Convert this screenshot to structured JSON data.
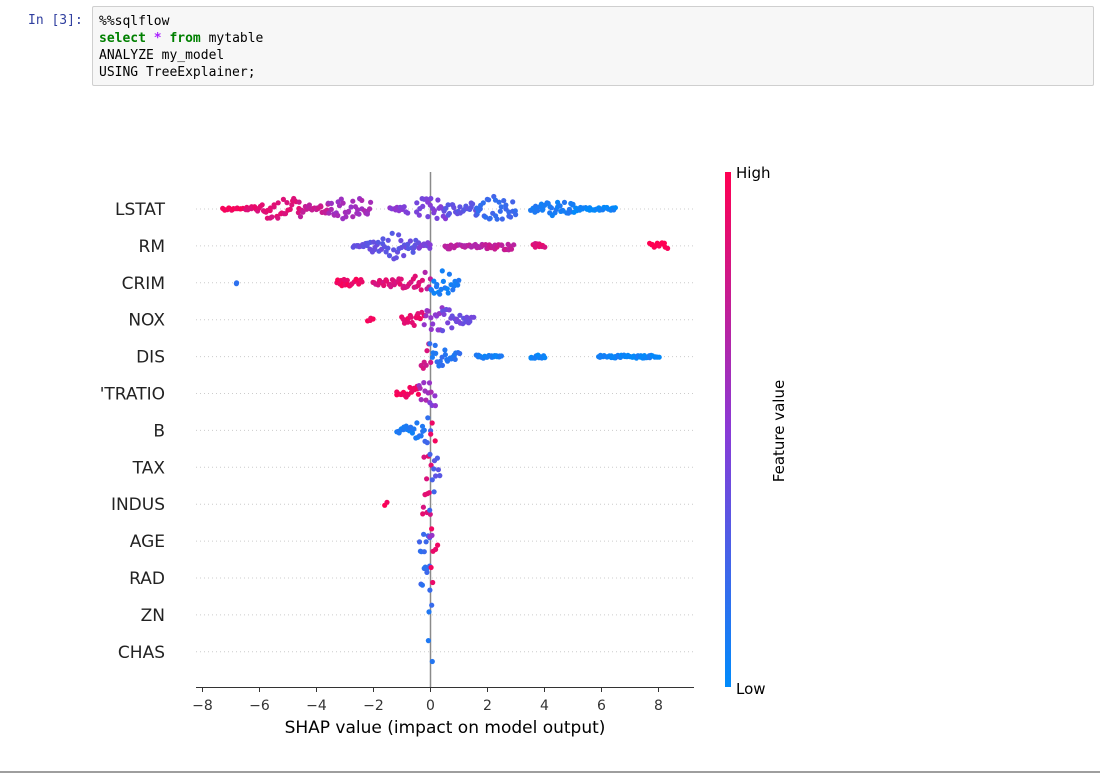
{
  "cell": {
    "prompt": "In [3]:",
    "code_lines": [
      {
        "parts": [
          {
            "t": "%%sqlflow",
            "c": "plain"
          }
        ]
      },
      {
        "parts": [
          {
            "t": "select",
            "c": "kw"
          },
          {
            "t": " ",
            "c": "plain"
          },
          {
            "t": "*",
            "c": "op"
          },
          {
            "t": " ",
            "c": "plain"
          },
          {
            "t": "from",
            "c": "kw"
          },
          {
            "t": " mytable",
            "c": "plain"
          }
        ]
      },
      {
        "parts": [
          {
            "t": "ANALYZE my_model",
            "c": "plain"
          }
        ]
      },
      {
        "parts": [
          {
            "t": "USING TreeExplainer;",
            "c": "plain"
          }
        ]
      }
    ]
  },
  "chart_data": {
    "type": "scatter",
    "subtype": "shap-beeswarm",
    "xlabel": "SHAP value (impact on model output)",
    "xlim": [
      -8.2,
      9.2
    ],
    "xticks": [
      -8,
      -6,
      -4,
      -2,
      0,
      2,
      4,
      6,
      8
    ],
    "features": [
      "LSTAT",
      "RM",
      "CRIM",
      "NOX",
      "DIS",
      "'TRATIO",
      "B",
      "TAX",
      "INDUS",
      "AGE",
      "RAD",
      "ZN",
      "CHAS"
    ],
    "colorbar": {
      "title": "Feature value",
      "high_label": "High",
      "low_label": "Low",
      "low_color": "#008bfb",
      "high_color": "#ff0052"
    },
    "zero_line": true,
    "grid": "dotted-rows",
    "distributions": [
      {
        "feature": "LSTAT",
        "segments": [
          [
            -7.3,
            -6.6,
            0.95
          ],
          [
            -6.5,
            -5.6,
            0.88
          ],
          [
            -5.6,
            -4.6,
            0.85
          ],
          [
            -4.6,
            -3.6,
            0.75
          ],
          [
            -3.6,
            -2.1,
            0.6
          ],
          [
            -1.4,
            -0.8,
            0.5
          ],
          [
            -0.5,
            0.5,
            0.45
          ],
          [
            0.5,
            1.6,
            0.35
          ],
          [
            1.6,
            3.0,
            0.2
          ],
          [
            3.5,
            5.0,
            0.08
          ],
          [
            5.0,
            6.5,
            0.05
          ]
        ],
        "density": [
          [
            -5.2,
            1.0
          ],
          [
            -2.8,
            1.0
          ],
          [
            0.1,
            1.0
          ],
          [
            2.2,
            1.0
          ],
          [
            4.4,
            0.6
          ]
        ]
      },
      {
        "feature": "RM",
        "segments": [
          [
            -2.7,
            -0.4,
            0.35
          ],
          [
            -0.4,
            0.0,
            0.45
          ],
          [
            0.5,
            2.0,
            0.7
          ],
          [
            2.0,
            2.9,
            0.75
          ],
          [
            3.6,
            4.0,
            0.85
          ],
          [
            7.7,
            8.3,
            1.0
          ]
        ],
        "density": [
          [
            -1.3,
            1.0
          ],
          [
            0.3,
            0.3
          ],
          [
            2.5,
            0.35
          ],
          [
            3.8,
            0.2
          ],
          [
            8.0,
            0.25
          ]
        ]
      },
      {
        "feature": "CRIM",
        "segments": [
          [
            -6.8,
            -6.8,
            0.15
          ],
          [
            -3.3,
            -2.4,
            0.95
          ],
          [
            -2.0,
            -0.3,
            0.85
          ],
          [
            -0.2,
            0.0,
            0.7
          ],
          [
            0.0,
            1.0,
            0.08
          ]
        ],
        "density": [
          [
            -2.8,
            0.3
          ],
          [
            -1.0,
            0.4
          ],
          [
            0.2,
            1.0
          ]
        ]
      },
      {
        "feature": "NOX",
        "segments": [
          [
            -2.2,
            -2.0,
            0.95
          ],
          [
            -1.0,
            -0.2,
            0.9
          ],
          [
            -0.2,
            0.4,
            0.55
          ],
          [
            0.4,
            1.5,
            0.4
          ]
        ],
        "density": [
          [
            -0.5,
            0.4
          ],
          [
            0.2,
            1.0
          ],
          [
            1.1,
            0.3
          ]
        ]
      },
      {
        "feature": "DIS",
        "segments": [
          [
            -0.3,
            0.0,
            0.8
          ],
          [
            0.0,
            1.0,
            0.15
          ],
          [
            1.6,
            2.5,
            0.08
          ],
          [
            3.5,
            4.0,
            0.05
          ],
          [
            5.9,
            8.0,
            0.05
          ]
        ],
        "density": [
          [
            -0.1,
            1.0
          ],
          [
            0.6,
            0.4
          ]
        ]
      },
      {
        "feature": "'TRATIO",
        "segments": [
          [
            -1.2,
            -0.4,
            0.95
          ],
          [
            -0.4,
            0.0,
            0.6
          ],
          [
            0.0,
            0.2,
            0.5
          ]
        ],
        "density": [
          [
            -0.2,
            0.5
          ],
          [
            0.05,
            1.0
          ]
        ]
      },
      {
        "feature": "B",
        "segments": [
          [
            -1.2,
            -0.2,
            0.1
          ],
          [
            -0.2,
            0.0,
            0.2
          ],
          [
            0.0,
            0.15,
            0.95
          ]
        ],
        "density": [
          [
            -0.7,
            0.2
          ],
          [
            0.05,
            1.0
          ]
        ]
      },
      {
        "feature": "TAX",
        "segments": [
          [
            -0.2,
            0.0,
            0.85
          ],
          [
            0.0,
            0.35,
            0.3
          ]
        ],
        "density": [
          [
            0.0,
            1.0
          ]
        ]
      },
      {
        "feature": "INDUS",
        "segments": [
          [
            -1.6,
            -1.5,
            0.95
          ],
          [
            -0.3,
            0.0,
            0.85
          ],
          [
            0.0,
            0.1,
            0.2
          ]
        ],
        "density": [
          [
            -1.55,
            0.25
          ],
          [
            0.0,
            1.0
          ]
        ]
      },
      {
        "feature": "AGE",
        "segments": [
          [
            -0.4,
            -0.05,
            0.2
          ],
          [
            -0.05,
            0.05,
            0.55
          ],
          [
            0.05,
            0.25,
            0.95
          ]
        ],
        "density": [
          [
            0.0,
            1.0
          ]
        ]
      },
      {
        "feature": "RAD",
        "segments": [
          [
            -0.35,
            0.0,
            0.2
          ],
          [
            0.0,
            0.05,
            0.9
          ]
        ],
        "density": [
          [
            0.0,
            1.0
          ]
        ]
      },
      {
        "feature": "ZN",
        "segments": [
          [
            -0.05,
            0.05,
            0.15
          ]
        ],
        "density": [
          [
            0.0,
            1.0
          ]
        ]
      },
      {
        "feature": "CHAS",
        "segments": [
          [
            -0.05,
            0.05,
            0.1
          ]
        ],
        "density": [
          [
            0.0,
            1.0
          ]
        ]
      }
    ]
  }
}
